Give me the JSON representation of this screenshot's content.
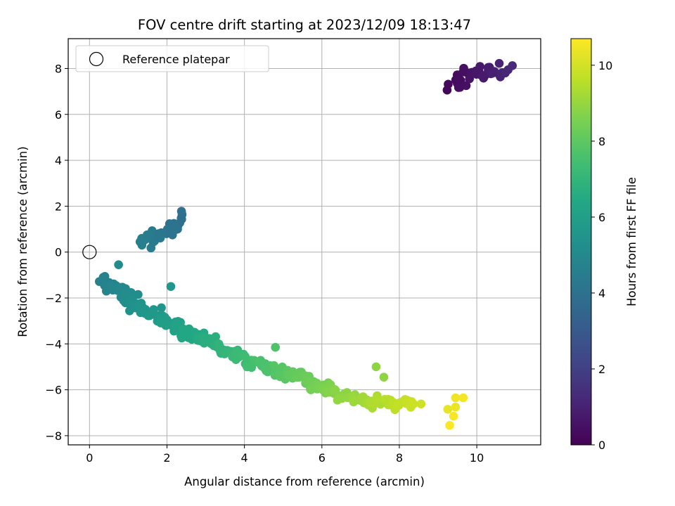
{
  "chart_data": {
    "type": "scatter",
    "title": "FOV centre drift starting at 2023/12/09 18:13:47",
    "xlabel": "Angular distance from reference (arcmin)",
    "ylabel": "Rotation from reference (arcmin)",
    "xlim": [
      -0.55,
      11.65
    ],
    "ylim": [
      -8.4,
      9.3
    ],
    "xticks": [
      0,
      2,
      4,
      6,
      8,
      10
    ],
    "yticks": [
      -8,
      -6,
      -4,
      -2,
      0,
      2,
      4,
      6,
      8
    ],
    "grid": true,
    "legend": {
      "placement": "top-left",
      "entries": [
        "Reference platepar"
      ]
    },
    "reference_point": {
      "x": 0,
      "y": 0,
      "name": "Reference platepar"
    },
    "colorbar": {
      "label": "Hours from first FF file",
      "range": [
        0,
        10.7
      ],
      "ticks": [
        0,
        2,
        4,
        6,
        8,
        10
      ],
      "colormap": "viridis"
    },
    "clusters": [
      {
        "name": "",
        "hours": [
          0.05,
          1.3
        ],
        "count": 42,
        "center": [
          10.0,
          7.7
        ],
        "spread": [
          0.95,
          0.4
        ],
        "trend": 0.45
      },
      {
        "name": "",
        "hours": [
          3.9,
          4.6
        ],
        "count": 40,
        "center": [
          1.85,
          0.85
        ],
        "spread": [
          0.55,
          0.35
        ],
        "trend": 1.0
      },
      {
        "name": "",
        "hours": [
          4.6,
          9.9
        ],
        "count": 320,
        "path": [
          [
            0.3,
            -1.2
          ],
          [
            1.5,
            -2.6
          ],
          [
            2.8,
            -3.7
          ],
          [
            4.2,
            -4.8
          ],
          [
            5.5,
            -5.5
          ],
          [
            6.5,
            -6.3
          ],
          [
            7.3,
            -6.6
          ],
          [
            8.0,
            -6.6
          ],
          [
            8.4,
            -6.5
          ]
        ],
        "spread": 0.25
      },
      {
        "name": "",
        "hours": [
          10.3,
          10.7
        ],
        "points": [
          [
            9.25,
            -6.85
          ],
          [
            9.45,
            -6.75
          ],
          [
            9.45,
            -6.35
          ],
          [
            9.65,
            -6.35
          ],
          [
            9.4,
            -7.15
          ],
          [
            9.3,
            -7.55
          ]
        ]
      }
    ],
    "outliers": [
      {
        "x": 7.4,
        "y": -5.0,
        "hours": 8.9
      },
      {
        "x": 7.6,
        "y": -5.45,
        "hours": 8.9
      },
      {
        "x": 4.8,
        "y": -4.15,
        "hours": 7.7
      },
      {
        "x": 2.1,
        "y": -1.5,
        "hours": 5.6
      },
      {
        "x": 0.75,
        "y": -0.55,
        "hours": 5.1
      }
    ]
  }
}
